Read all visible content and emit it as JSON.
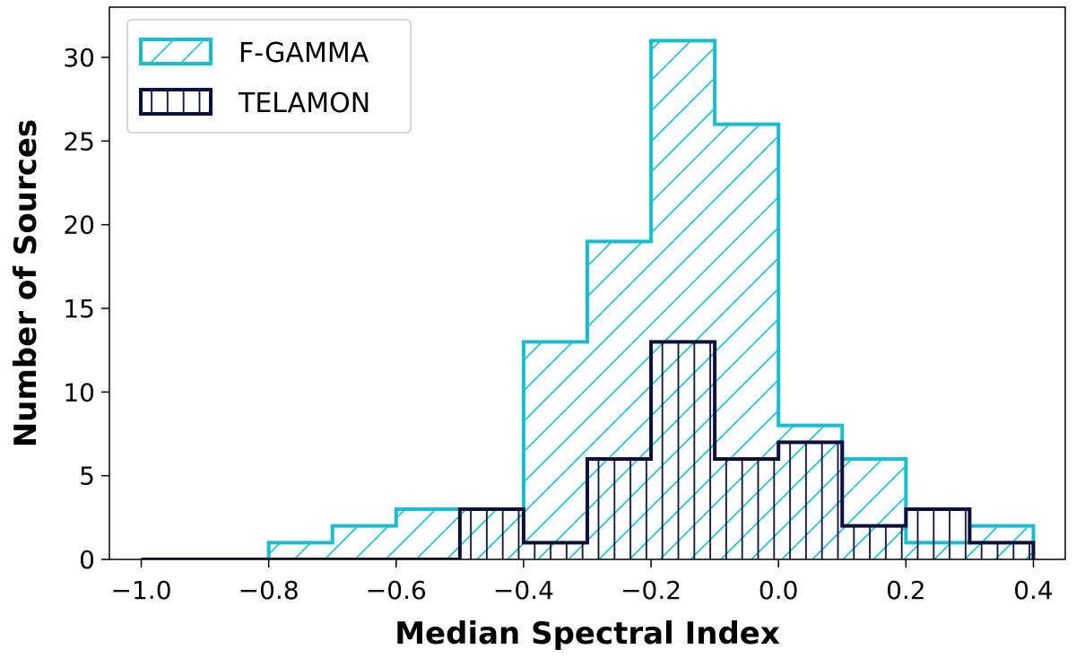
{
  "chart_data": {
    "type": "bar",
    "subtype": "step-histogram",
    "title": "",
    "xlabel": "Median Spectral Index",
    "ylabel": "Number of Sources",
    "xlim": [
      -1.05,
      0.45
    ],
    "ylim": [
      0,
      33
    ],
    "xticks": [
      -1.0,
      -0.8,
      -0.6,
      -0.4,
      -0.2,
      0.0,
      0.2,
      0.4
    ],
    "xtick_labels": [
      "−1.0",
      "−0.8",
      "−0.6",
      "−0.4",
      "−0.2",
      "0.0",
      "0.2",
      "0.4"
    ],
    "yticks": [
      0,
      5,
      10,
      15,
      20,
      25,
      30
    ],
    "ytick_labels": [
      "0",
      "5",
      "10",
      "15",
      "20",
      "25",
      "30"
    ],
    "bin_edges": [
      -1.0,
      -0.9,
      -0.8,
      -0.7,
      -0.6,
      -0.5,
      -0.4,
      -0.3,
      -0.2,
      -0.1,
      0.0,
      0.1,
      0.2,
      0.3,
      0.4
    ],
    "grid": false,
    "legend_position": "top-left",
    "series": [
      {
        "name": "F-GAMMA",
        "color": "#17becf",
        "hatch": "diagonal",
        "values": [
          0,
          0,
          1,
          2,
          3,
          3,
          13,
          19,
          31,
          26,
          8,
          6,
          1,
          2
        ]
      },
      {
        "name": "TELAMON",
        "color": "#0d0f3d",
        "hatch": "vertical",
        "values": [
          0,
          0,
          0,
          0,
          0,
          3,
          1,
          6,
          13,
          6,
          7,
          2,
          3,
          1
        ]
      }
    ]
  }
}
